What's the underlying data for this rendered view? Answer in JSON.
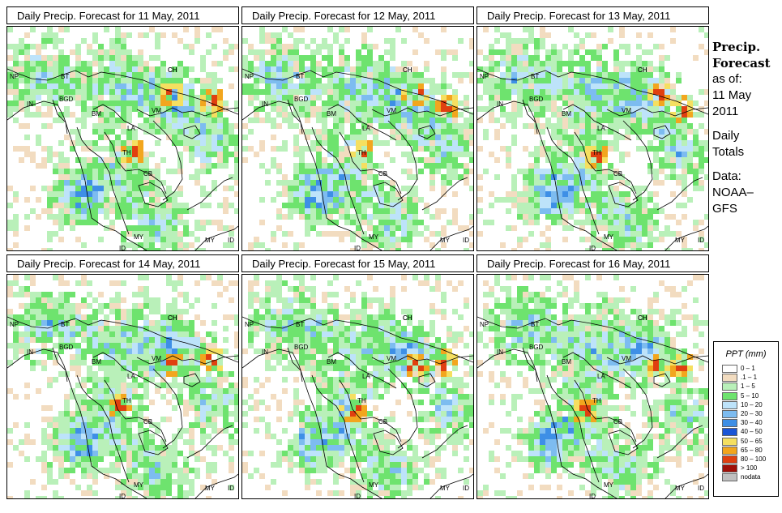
{
  "panels": [
    {
      "title": "Daily Precip. Forecast for  11 May, 2011",
      "seed": 11
    },
    {
      "title": "Daily Precip. Forecast for  12 May, 2011",
      "seed": 12
    },
    {
      "title": "Daily Precip. Forecast for  13 May, 2011",
      "seed": 13
    },
    {
      "title": "Daily Precip. Forecast for  14 May, 2011",
      "seed": 14
    },
    {
      "title": "Daily Precip. Forecast for  15 May, 2011",
      "seed": 15
    },
    {
      "title": "Daily Precip. Forecast for  16 May, 2011",
      "seed": 16
    }
  ],
  "country_labels": [
    "NP",
    "BT",
    "BGD",
    "IN",
    "BM",
    "CH",
    "VM",
    "LA",
    "TH",
    "CB",
    "MY",
    "ID",
    "MY",
    "ID",
    "CH"
  ],
  "sidebar": {
    "title_line1": "Precip.",
    "title_line2": "Forecast",
    "asof": "as of:",
    "date1": "11 May",
    "date2": "2011",
    "daily1": "Daily",
    "daily2": "Totals",
    "data1": "Data:",
    "data2": "NOAA–",
    "data3": "GFS"
  },
  "legend": {
    "title": "PPT (mm)",
    "items": [
      {
        "label": "0 – 1",
        "color": "#ffffff"
      },
      {
        "label": ".1 – 1",
        "color": "#f2dcc0"
      },
      {
        "label": "1 – 5",
        "color": "#b9f0b9"
      },
      {
        "label": "5 – 10",
        "color": "#6ee36e"
      },
      {
        "label": "10 – 20",
        "color": "#bde3fa"
      },
      {
        "label": "20 – 30",
        "color": "#7dbcf0"
      },
      {
        "label": "30 – 40",
        "color": "#3e8fe6"
      },
      {
        "label": "40 – 50",
        "color": "#1a55d6"
      },
      {
        "label": "50 – 65",
        "color": "#f5df60"
      },
      {
        "label": "65 – 80",
        "color": "#f2a61e"
      },
      {
        "label": "80 – 100",
        "color": "#e04010"
      },
      {
        "label": "> 100",
        "color": "#a01008"
      },
      {
        "label": "nodata",
        "color": "#c0c0c0"
      }
    ]
  }
}
